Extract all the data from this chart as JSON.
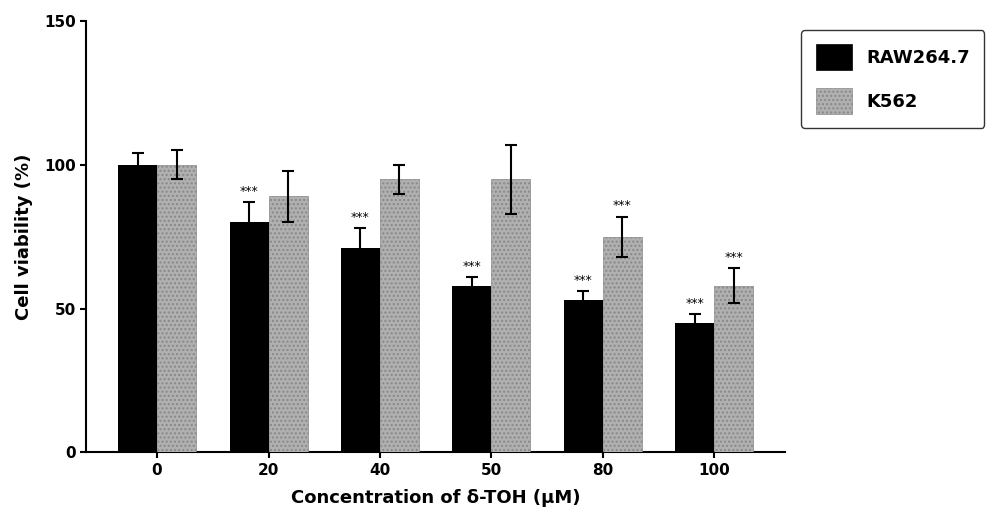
{
  "categories": [
    0,
    20,
    40,
    50,
    80,
    100
  ],
  "raw264_values": [
    100,
    80,
    71,
    58,
    53,
    45
  ],
  "k562_values": [
    100,
    89,
    95,
    95,
    75,
    58
  ],
  "raw264_errors": [
    4,
    7,
    7,
    3,
    3,
    3
  ],
  "k562_errors": [
    5,
    9,
    5,
    12,
    7,
    6
  ],
  "raw264_color": "#000000",
  "k562_color": "#b0b0b0",
  "ylabel": "Cell viability (%)",
  "xlabel": "Concentration of δ-TOH (μM)",
  "ylim": [
    0,
    150
  ],
  "yticks": [
    0,
    50,
    100,
    150
  ],
  "legend_labels": [
    "RAW264.7",
    "K562"
  ],
  "bar_width": 0.35,
  "significance_raw": [
    false,
    true,
    true,
    true,
    true,
    true
  ],
  "significance_k562": [
    false,
    false,
    false,
    false,
    true,
    true
  ],
  "sig_label": "***",
  "figsize": [
    10.0,
    5.22
  ],
  "dpi": 100
}
